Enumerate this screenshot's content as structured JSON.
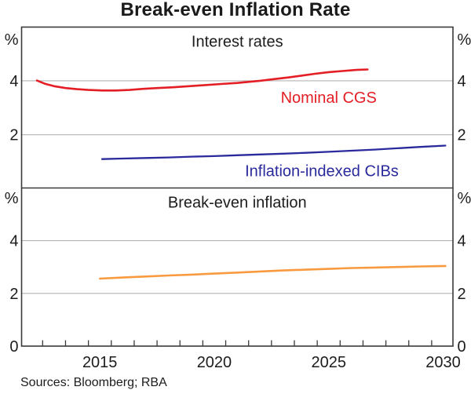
{
  "title": "Break-even Inflation Rate",
  "source_note": "Sources: Bloomberg; RBA",
  "unit_label": "%",
  "colors": {
    "nominal_cgs": "#e41e25",
    "inflation_indexed_cibs": "#2a2a9c",
    "break_even": "#f89a40",
    "grid": "#b4b4b4",
    "frame": "#3a3a3a",
    "text": "#1c1c1c"
  },
  "x_axis": {
    "range": [
      2012.08,
      2030.93
    ],
    "tick_years": [
      2013,
      2014,
      2015,
      2016,
      2017,
      2018,
      2019,
      2020,
      2021,
      2022,
      2023,
      2024,
      2025,
      2026,
      2027,
      2028,
      2029,
      2030
    ],
    "labels": [
      {
        "year": 2015,
        "label": "2015"
      },
      {
        "year": 2020,
        "label": "2020"
      },
      {
        "year": 2025,
        "label": "2025"
      },
      {
        "year": 2030,
        "label": "2030"
      }
    ]
  },
  "chart_data": [
    {
      "type": "line",
      "panel": "top",
      "panel_title": "Interest rates",
      "unit": "%",
      "ylim": [
        0,
        6
      ],
      "ytick_values": [
        2,
        4
      ],
      "grid": true,
      "series": [
        {
          "name": "Nominal CGS",
          "color_key": "nominal_cgs",
          "label_at": [
            2025.5,
            3.38
          ],
          "points": [
            [
              2012.75,
              4.01
            ],
            [
              2013.1,
              3.89
            ],
            [
              2013.5,
              3.8
            ],
            [
              2014.0,
              3.73
            ],
            [
              2014.5,
              3.69
            ],
            [
              2015.0,
              3.66
            ],
            [
              2015.6,
              3.64
            ],
            [
              2016.2,
              3.64
            ],
            [
              2016.8,
              3.66
            ],
            [
              2017.4,
              3.7
            ],
            [
              2018.0,
              3.73
            ],
            [
              2018.7,
              3.76
            ],
            [
              2019.4,
              3.8
            ],
            [
              2020.1,
              3.84
            ],
            [
              2020.8,
              3.88
            ],
            [
              2021.5,
              3.92
            ],
            [
              2022.0,
              3.96
            ],
            [
              2022.5,
              4.0
            ],
            [
              2023.1,
              4.06
            ],
            [
              2023.7,
              4.12
            ],
            [
              2024.3,
              4.19
            ],
            [
              2024.9,
              4.26
            ],
            [
              2025.5,
              4.32
            ],
            [
              2026.1,
              4.36
            ],
            [
              2026.7,
              4.4
            ],
            [
              2027.2,
              4.42
            ]
          ]
        },
        {
          "name": "Inflation-indexed CIBs",
          "color_key": "inflation_indexed_cibs",
          "label_at": [
            2025.2,
            0.67
          ],
          "points": [
            [
              2015.6,
              1.1
            ],
            [
              2016.5,
              1.12
            ],
            [
              2017.5,
              1.14
            ],
            [
              2018.5,
              1.16
            ],
            [
              2019.5,
              1.19
            ],
            [
              2020.5,
              1.21
            ],
            [
              2021.5,
              1.24
            ],
            [
              2022.5,
              1.27
            ],
            [
              2023.5,
              1.3
            ],
            [
              2024.5,
              1.33
            ],
            [
              2025.5,
              1.37
            ],
            [
              2026.5,
              1.41
            ],
            [
              2027.5,
              1.45
            ],
            [
              2028.5,
              1.5
            ],
            [
              2029.5,
              1.55
            ],
            [
              2030.6,
              1.6
            ]
          ]
        }
      ]
    },
    {
      "type": "line",
      "panel": "bottom",
      "panel_title": "Break-even inflation",
      "unit": "%",
      "ylim": [
        0,
        6
      ],
      "ytick_values": [
        0,
        2,
        4
      ],
      "grid": true,
      "series": [
        {
          "name": "Break-even inflation",
          "color_key": "break_even",
          "points": [
            [
              2015.5,
              2.56
            ],
            [
              2016.5,
              2.6
            ],
            [
              2017.5,
              2.64
            ],
            [
              2018.5,
              2.68
            ],
            [
              2019.5,
              2.71
            ],
            [
              2020.5,
              2.75
            ],
            [
              2021.5,
              2.79
            ],
            [
              2022.5,
              2.83
            ],
            [
              2023.5,
              2.87
            ],
            [
              2024.5,
              2.9
            ],
            [
              2025.5,
              2.93
            ],
            [
              2026.5,
              2.96
            ],
            [
              2027.5,
              2.98
            ],
            [
              2028.5,
              3.0
            ],
            [
              2029.5,
              3.02
            ],
            [
              2030.6,
              3.04
            ]
          ]
        }
      ]
    }
  ]
}
